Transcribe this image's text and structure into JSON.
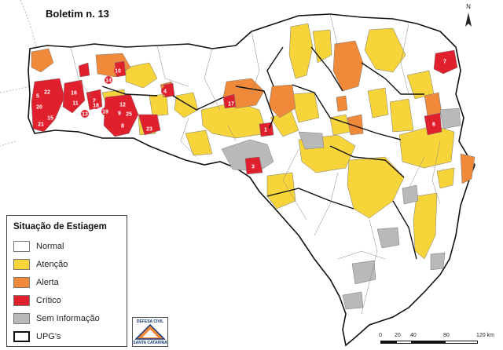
{
  "title": "Boletim n. 13",
  "colors": {
    "normal": "#ffffff",
    "atencao": "#f7d43a",
    "alerta": "#f08a3a",
    "critico": "#e1202e",
    "sem_informacao": "#b9b9b9",
    "boundary": "#222222",
    "municipal": "#8a8a8a"
  },
  "legend": {
    "title": "Situação de Estiagem",
    "items": [
      {
        "label": "Normal",
        "color": "#ffffff"
      },
      {
        "label": "Atenção",
        "color": "#f7d43a"
      },
      {
        "label": "Alerta",
        "color": "#f08a3a"
      },
      {
        "label": "Crítico",
        "color": "#e1202e"
      },
      {
        "label": "Sem Informação",
        "color": "#b9b9b9"
      },
      {
        "label": "UPG's",
        "color": "box"
      }
    ]
  },
  "critical_labels": [
    "22",
    "5",
    "20",
    "21",
    "15",
    "16",
    "11",
    "13",
    "14",
    "10",
    "2",
    "19",
    "12",
    "9",
    "25",
    "8",
    "23",
    "4",
    "17",
    "1",
    "3",
    "7",
    "6",
    "18"
  ],
  "logo": {
    "line1": "DEFESA CIVIL",
    "line2": "SANTA CATARINA"
  },
  "north_label": "N",
  "scale": {
    "ticks": [
      "0",
      "20",
      "40",
      "80",
      "120 km"
    ]
  }
}
